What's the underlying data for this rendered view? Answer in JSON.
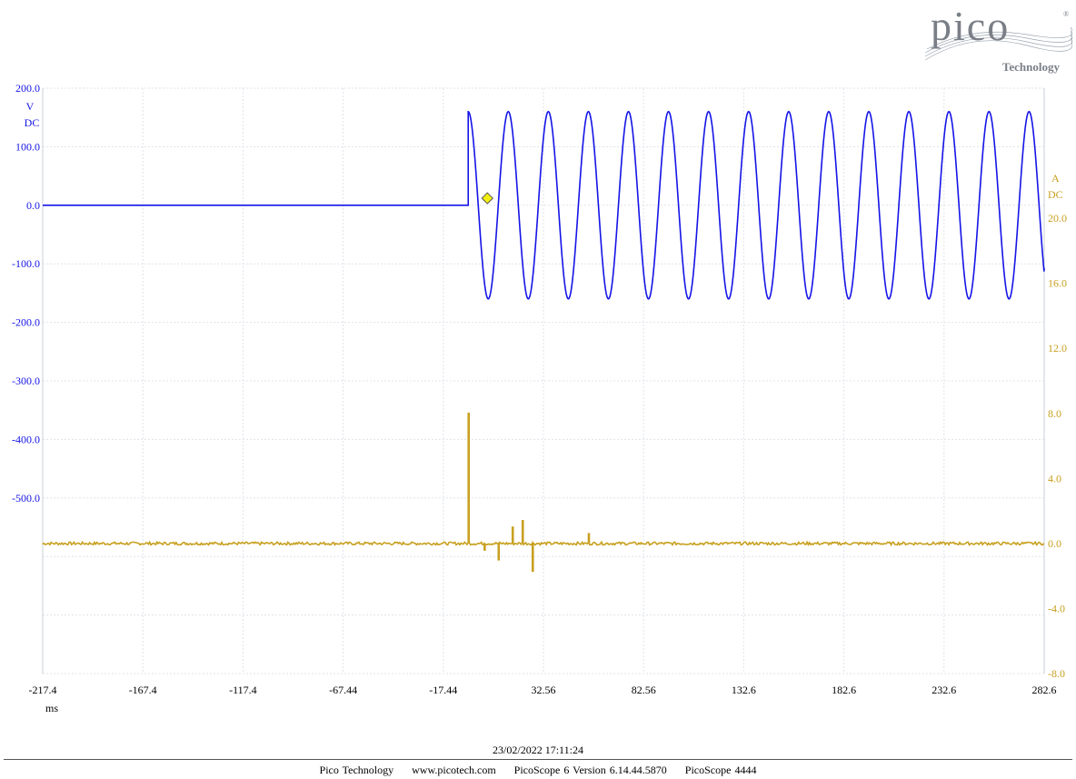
{
  "logo": {
    "text": "pico",
    "subtext": "Technology",
    "color": "#7a7f87"
  },
  "chart_data": {
    "type": "line",
    "x": {
      "label": "ms",
      "range": [
        -217.44,
        282.56
      ],
      "ticks": [
        "-217.4",
        "-167.4",
        "-117.4",
        "-67.44",
        "-17.44",
        "32.56",
        "82.56",
        "132.6",
        "182.6",
        "232.6",
        "282.6"
      ]
    },
    "y_left": {
      "unit": "V",
      "coupling": "DC",
      "color": "#1414e6",
      "range": [
        -800,
        200
      ],
      "ticks": [
        "200.0",
        "100.0",
        "0.0",
        "-100.0",
        "-200.0",
        "-300.0",
        "-400.0",
        "-500.0"
      ]
    },
    "y_right": {
      "unit": "A",
      "coupling": "DC",
      "color": "#c8a020",
      "range": [
        -8,
        28
      ],
      "ticks": [
        "20.0",
        "16.0",
        "12.0",
        "8.0",
        "4.0",
        "0.0",
        "-4.0",
        "-8.0"
      ]
    },
    "grid": true,
    "series": [
      {
        "channel": "A",
        "color": "#1414e6",
        "axis": "left",
        "flat_until_ms": -5,
        "step_at_ms": -5,
        "step_to_v": 160,
        "sine_amplitude_v": 160,
        "sine_frequency_hz": 50,
        "end_value_v": -107
      },
      {
        "channel": "B",
        "color": "#c8a020",
        "axis": "right",
        "baseline_a": 0.0,
        "events": [
          {
            "x_ms": -5,
            "y_a": 8.0
          },
          {
            "x_ms": 3,
            "y_a": -0.4
          },
          {
            "x_ms": 10,
            "y_a": -1.0
          },
          {
            "x_ms": 17,
            "y_a": 1.0
          },
          {
            "x_ms": 22,
            "y_a": 1.4
          },
          {
            "x_ms": 27,
            "y_a": -1.7
          },
          {
            "x_ms": 55,
            "y_a": 0.6
          }
        ]
      }
    ],
    "trigger": {
      "x_ms": 0,
      "y_v": 12,
      "color": "#f2ee10"
    }
  },
  "footer": {
    "timestamp": "23/02/2022 17:11:24",
    "company": "Pico Technology",
    "website": "www.picotech.com",
    "version": "PicoScope 6 Version 6.14.44.5870",
    "device": "PicoScope 4444"
  }
}
